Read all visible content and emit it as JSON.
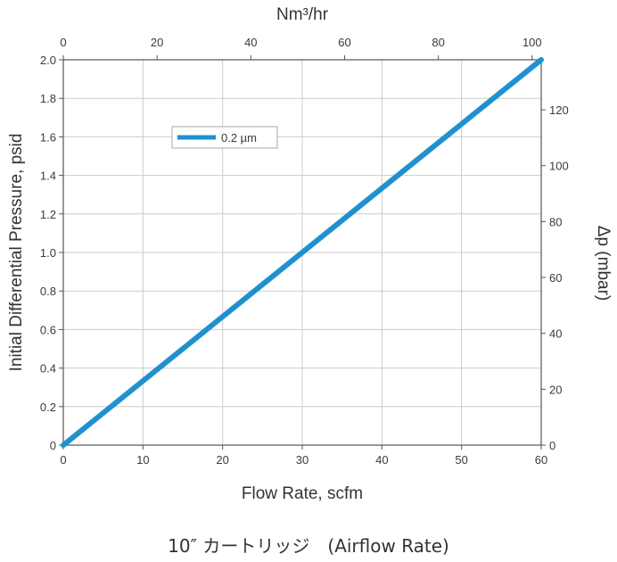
{
  "chart_data": {
    "type": "line",
    "xlabel": "Flow Rate, scfm",
    "ylabel": "Initial Differential Pressure, psid",
    "x2label": "Nm³/hr",
    "y2label": "Δp (mbar)",
    "xlim": [
      0,
      60
    ],
    "ylim": [
      0,
      2.0
    ],
    "x2lim": [
      0,
      101.94
    ],
    "y2lim": [
      0,
      137.9
    ],
    "x_ticks": [
      0,
      10,
      20,
      30,
      40,
      50,
      60
    ],
    "y_ticks": [
      0,
      0.2,
      0.4,
      0.6,
      0.8,
      1.0,
      1.2,
      1.4,
      1.6,
      1.8,
      2.0
    ],
    "x_tick_labels": [
      "0",
      "10",
      "20",
      "30",
      "40",
      "50",
      "60"
    ],
    "y_tick_labels": [
      "0",
      "0.2",
      "0.4",
      "0.6",
      "0.8",
      "1.0",
      "1.2",
      "1.4",
      "1.6",
      "1.8",
      "2.0"
    ],
    "x2_ticks": [
      0,
      20,
      40,
      60,
      80,
      100
    ],
    "x2_tick_labels": [
      "0",
      "20",
      "40",
      "60",
      "80",
      "100"
    ],
    "y2_ticks": [
      0,
      20,
      40,
      60,
      80,
      100,
      120
    ],
    "y2_tick_labels": [
      "0",
      "20",
      "40",
      "60",
      "80",
      "100",
      "120"
    ],
    "grid": true,
    "legend": "upper-left",
    "series": [
      {
        "name": "0.2  µm",
        "color": "#1f91cf",
        "x": [
          0,
          60
        ],
        "y": [
          0,
          2.0
        ]
      }
    ]
  },
  "caption": "10″ カートリッジ　(Airflow Rate)"
}
